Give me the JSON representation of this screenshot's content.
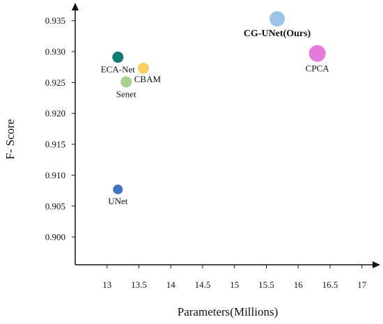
{
  "chart_data": {
    "type": "scatter",
    "xlabel": "Parameters(Millions)",
    "ylabel": "F- Score",
    "xlim": [
      12.5,
      17.2
    ],
    "ylim": [
      0.8955,
      0.937
    ],
    "x_ticks": [
      "13",
      "13.5",
      "14",
      "14.5",
      "15",
      "15.5",
      "16",
      "16.5",
      "17"
    ],
    "y_ticks": [
      "0.900",
      "0.905",
      "0.910",
      "0.915",
      "0.920",
      "0.925",
      "0.930",
      "0.935"
    ],
    "points": [
      {
        "label": "UNet",
        "x": 13.17,
        "y": 0.9077,
        "color": "#4472c4",
        "size": 7,
        "label_pos": "below",
        "bold": false
      },
      {
        "label": "ECA-Net",
        "x": 13.17,
        "y": 0.9291,
        "color": "#0e7c74",
        "size": 8,
        "label_pos": "below",
        "bold": false
      },
      {
        "label": "CBAM",
        "x": 13.57,
        "y": 0.9273,
        "color": "#f7cf63",
        "size": 8,
        "label_pos": "below-right",
        "bold": false
      },
      {
        "label": "Senet",
        "x": 13.3,
        "y": 0.9251,
        "color": "#a9d18e",
        "size": 8,
        "label_pos": "below",
        "bold": false
      },
      {
        "label": "CG-UNet(Ours)",
        "x": 15.67,
        "y": 0.9353,
        "color": "#9dc3e6",
        "size": 11,
        "label_pos": "below",
        "bold": true
      },
      {
        "label": "CPCA",
        "x": 16.3,
        "y": 0.9297,
        "color": "#e77ad8",
        "size": 12,
        "label_pos": "below",
        "bold": false
      }
    ]
  }
}
